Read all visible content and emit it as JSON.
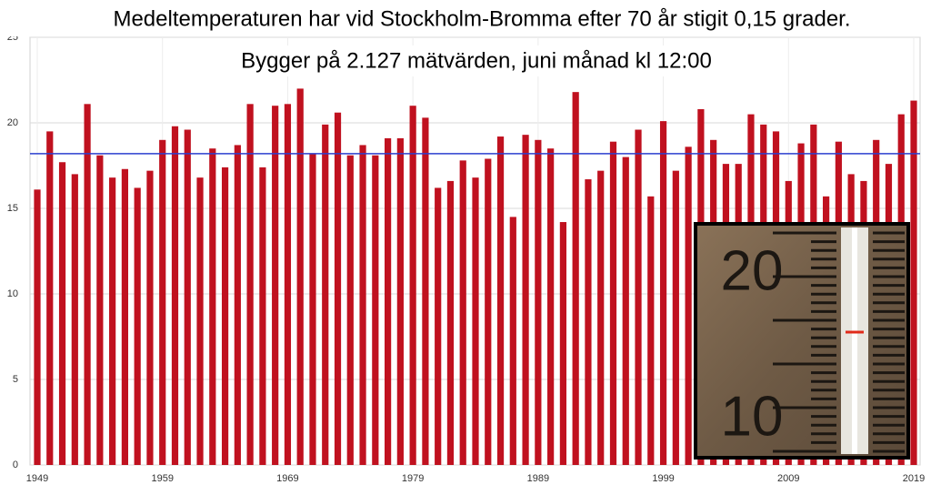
{
  "chart_data": {
    "type": "bar",
    "title": "Medeltemperaturen har vid Stockholm-Bromma efter 70 år stigit 0,15 grader.",
    "subtitle": "Bygger på 2.127 mätvärden, juni månad kl 12:00",
    "categories": [
      "1949",
      null,
      null,
      null,
      null,
      null,
      null,
      null,
      null,
      null,
      "1959",
      null,
      null,
      null,
      null,
      null,
      null,
      null,
      null,
      null,
      "1969",
      null,
      null,
      null,
      null,
      null,
      null,
      null,
      null,
      null,
      "1979",
      null,
      null,
      null,
      null,
      null,
      null,
      null,
      null,
      null,
      "1989",
      null,
      null,
      null,
      null,
      null,
      null,
      null,
      null,
      null,
      "1999",
      null,
      null,
      null,
      null,
      null,
      null,
      null,
      null,
      null,
      "2009",
      null,
      null,
      null,
      null,
      null,
      null,
      null,
      null,
      null,
      "2019"
    ],
    "values": [
      16.1,
      19.5,
      17.7,
      17.0,
      21.1,
      18.1,
      16.8,
      17.3,
      16.2,
      17.2,
      19.0,
      19.8,
      19.6,
      16.8,
      18.5,
      17.4,
      18.7,
      21.1,
      17.4,
      21.0,
      21.1,
      22.0,
      18.2,
      19.9,
      20.6,
      18.1,
      18.7,
      18.1,
      19.1,
      19.1,
      21.0,
      20.3,
      16.2,
      16.6,
      17.8,
      16.8,
      17.9,
      19.2,
      14.5,
      19.3,
      19.0,
      18.5,
      14.2,
      21.8,
      16.7,
      17.2,
      18.9,
      18.0,
      19.6,
      15.7,
      20.1,
      17.2,
      18.6,
      20.8,
      19.0,
      17.6,
      17.6,
      20.5,
      19.9,
      19.5,
      16.6,
      18.8,
      19.9,
      15.7,
      18.9,
      17.0,
      16.6,
      19.0,
      17.6,
      20.5,
      21.3
    ],
    "color": "#c0111f",
    "reference_line": {
      "value": 18.2,
      "color": "#2b3fcf"
    },
    "ylim": [
      0,
      25
    ],
    "yticks": [
      0,
      5,
      10,
      15,
      20,
      25
    ],
    "grid": true
  },
  "inset": {
    "labels": [
      "20",
      "10"
    ]
  }
}
